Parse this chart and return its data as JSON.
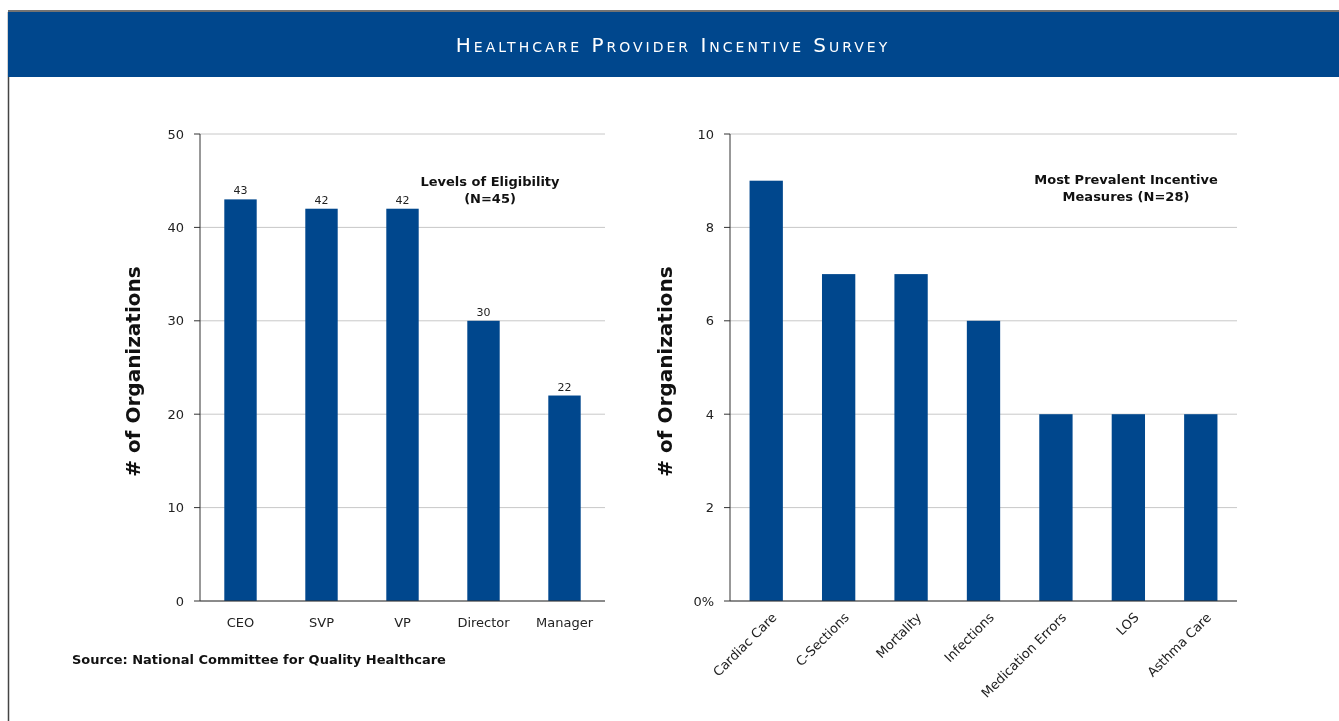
{
  "chart_data": [
    {
      "type": "bar",
      "title": "Healthcare Provider Incentive Survey",
      "ylabel": "# of Organizations",
      "categories": [
        "CEO",
        "SVP",
        "VP",
        "Director",
        "Manager"
      ],
      "values": [
        43,
        42,
        42,
        30,
        22
      ],
      "color": "#00478d",
      "data_labels": true,
      "ylim": [
        0,
        50
      ],
      "yticks": [
        0,
        10,
        20,
        30,
        40,
        50
      ],
      "grid": "y",
      "annotations": [
        "Levels of Eligibility\n(N=45)",
        "Source: National Committee for Quality Healthcare"
      ]
    },
    {
      "type": "bar",
      "ylabel": "# of Organizations",
      "categories": [
        "Cardiac Care",
        "C-Sections",
        "Mortality",
        "Infections",
        "Medication Errors",
        "LOS",
        "Asthma Care"
      ],
      "values": [
        9,
        7,
        7,
        6,
        4,
        4,
        4
      ],
      "color": "#00478d",
      "ylim": [
        0,
        10
      ],
      "yticks": [
        {
          "value": 0,
          "label": "0%"
        },
        2,
        4,
        6,
        8,
        10
      ],
      "grid": "y",
      "annotations": [
        "Most Prevalent Incentive\nMeasures (N=28)"
      ]
    }
  ]
}
